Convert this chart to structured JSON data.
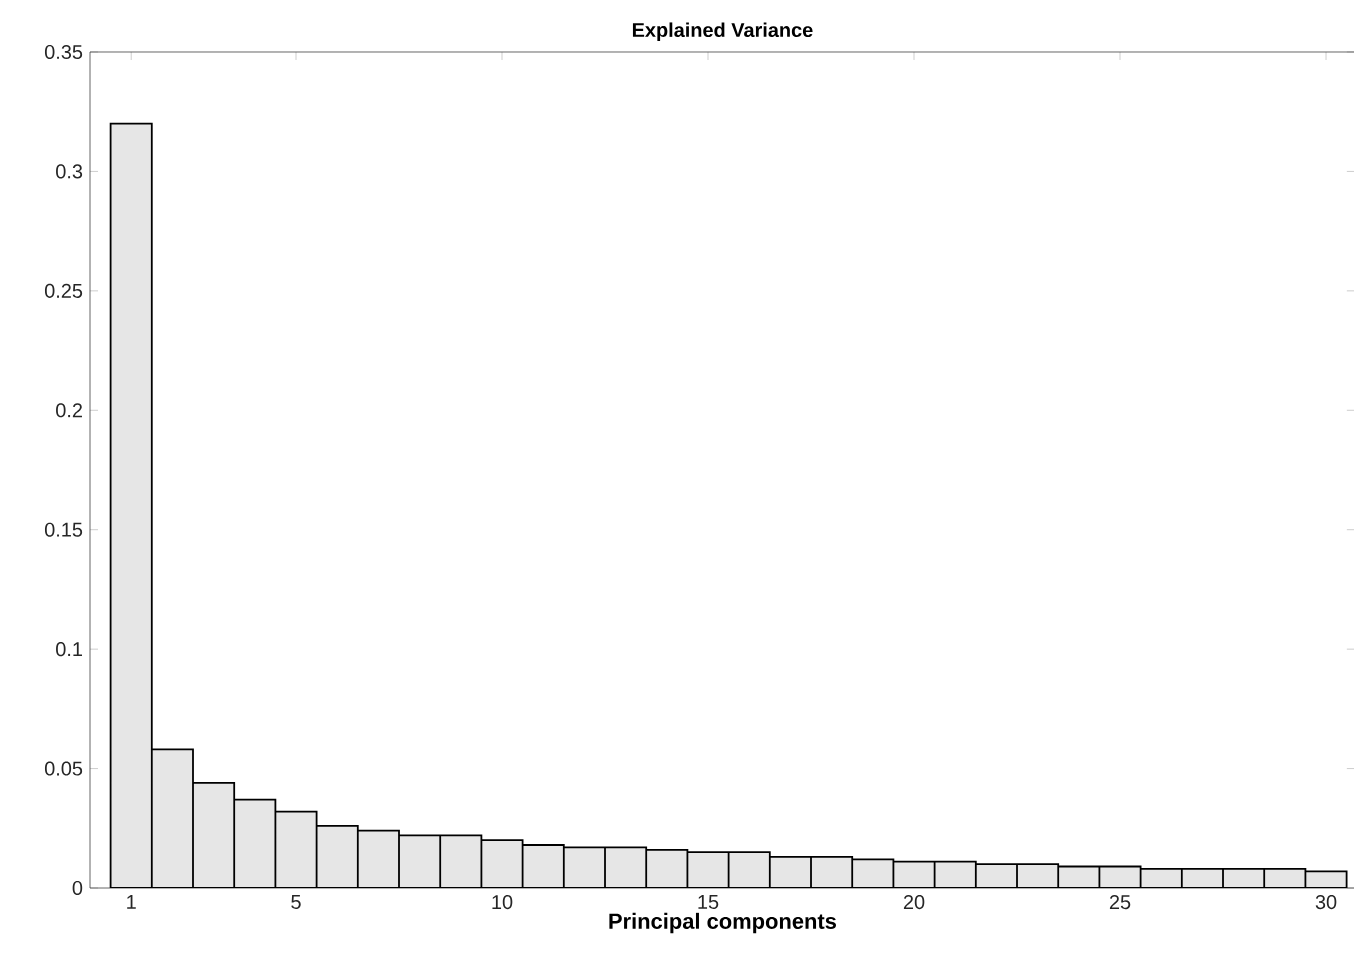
{
  "chart_data": {
    "type": "bar",
    "title": "Explained Variance",
    "xlabel": "Principal components",
    "x": [
      1,
      2,
      3,
      4,
      5,
      6,
      7,
      8,
      9,
      10,
      11,
      12,
      13,
      14,
      15,
      16,
      17,
      18,
      19,
      20,
      21,
      22,
      23,
      24,
      25,
      26,
      27,
      28,
      29,
      30
    ],
    "values": [
      0.32,
      0.058,
      0.044,
      0.037,
      0.032,
      0.026,
      0.024,
      0.022,
      0.022,
      0.02,
      0.018,
      0.017,
      0.017,
      0.016,
      0.015,
      0.015,
      0.013,
      0.013,
      0.012,
      0.011,
      0.011,
      0.01,
      0.01,
      0.009,
      0.009,
      0.008,
      0.008,
      0.008,
      0.008,
      0.007
    ],
    "color": "#e6e6e6",
    "xlim": [
      0,
      30.7
    ],
    "ylim": [
      0,
      0.35
    ],
    "xticks": [
      1,
      5,
      10,
      15,
      20,
      25,
      30
    ],
    "yticks": [
      0,
      0.05,
      0.1,
      0.15,
      0.2,
      0.25,
      0.3,
      0.35
    ]
  }
}
